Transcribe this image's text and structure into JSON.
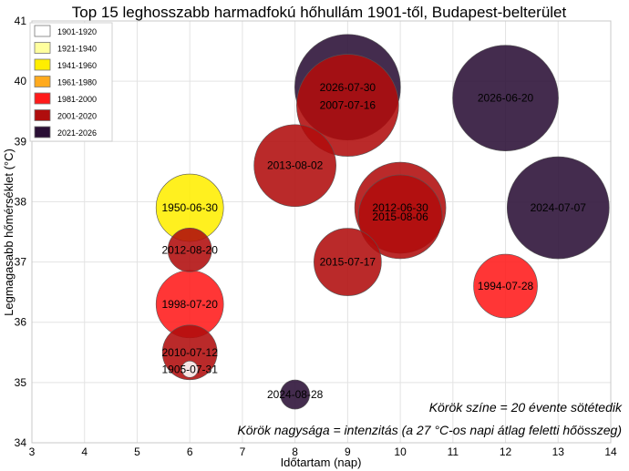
{
  "chart_data": {
    "type": "scatter",
    "title": "Top 15 leghosszabb harmadfokú hőhullám 1901-től, Budapest-belterület",
    "xlabel": "Időtartam (nap)",
    "ylabel": "Legmagasabb hőmérséklet (°C)",
    "xlim": [
      3,
      14
    ],
    "ylim": [
      34,
      41
    ],
    "xticks": [
      3,
      4,
      5,
      6,
      7,
      8,
      9,
      10,
      11,
      12,
      13,
      14
    ],
    "yticks": [
      34,
      35,
      36,
      37,
      38,
      39,
      40,
      41
    ],
    "grid": true,
    "legend_placement": "top-left",
    "legend": [
      {
        "label": "1901-1920",
        "color": "#ffffff"
      },
      {
        "label": "1921-1940",
        "color": "#ffff9e"
      },
      {
        "label": "1941-1960",
        "color": "#ffee00"
      },
      {
        "label": "1961-1980",
        "color": "#ffaa1e"
      },
      {
        "label": "1981-2000",
        "color": "#ff1a1a"
      },
      {
        "label": "2001-2020",
        "color": "#b00d0d"
      },
      {
        "label": "2021-2026",
        "color": "#2a0f35"
      }
    ],
    "annotations": [
      "Körök színe = 20 évente sötétedik",
      "Körök nagysága = intenzitás (a 27 °C-os napi átlag feletti hőösszeg)"
    ],
    "points": [
      {
        "label": "2026-06-20",
        "x": 12,
        "y": 39.72,
        "r": 58,
        "color": "#2a0f35"
      },
      {
        "label": "2026-07-30",
        "x": 9,
        "y": 39.9,
        "r": 58,
        "color": "#2a0f35"
      },
      {
        "label": "2007-07-16",
        "x": 9,
        "y": 39.6,
        "r": 56,
        "color": "#b00d0d"
      },
      {
        "label": "2024-07-07",
        "x": 13,
        "y": 37.9,
        "r": 56,
        "color": "#2a0f35"
      },
      {
        "label": "2013-08-02",
        "x": 8,
        "y": 38.6,
        "r": 45,
        "color": "#b00d0d"
      },
      {
        "label": "2012-06-30",
        "x": 10,
        "y": 37.9,
        "r": 50,
        "color": "#b00d0d"
      },
      {
        "label": "2015-08-06",
        "x": 10,
        "y": 37.75,
        "r": 46,
        "color": "#b00d0d"
      },
      {
        "label": "1950-06-30",
        "x": 6,
        "y": 37.9,
        "r": 37,
        "color": "#ffee00"
      },
      {
        "label": "2015-07-17",
        "x": 9,
        "y": 37.0,
        "r": 37,
        "color": "#b00d0d"
      },
      {
        "label": "1994-07-28",
        "x": 12,
        "y": 36.6,
        "r": 35,
        "color": "#ff1a1a"
      },
      {
        "label": "1998-07-20",
        "x": 6,
        "y": 36.3,
        "r": 37,
        "color": "#ff1a1a"
      },
      {
        "label": "2012-08-20",
        "x": 6,
        "y": 37.2,
        "r": 24,
        "color": "#b00d0d"
      },
      {
        "label": "2010-07-12",
        "x": 6,
        "y": 35.5,
        "r": 30,
        "color": "#b00d0d"
      },
      {
        "label": "1905-07-31",
        "x": 6,
        "y": 35.22,
        "r": 9,
        "color": "#ffffff"
      },
      {
        "label": "2024-08-28",
        "x": 8,
        "y": 34.8,
        "r": 16,
        "color": "#2a0f35"
      }
    ]
  }
}
